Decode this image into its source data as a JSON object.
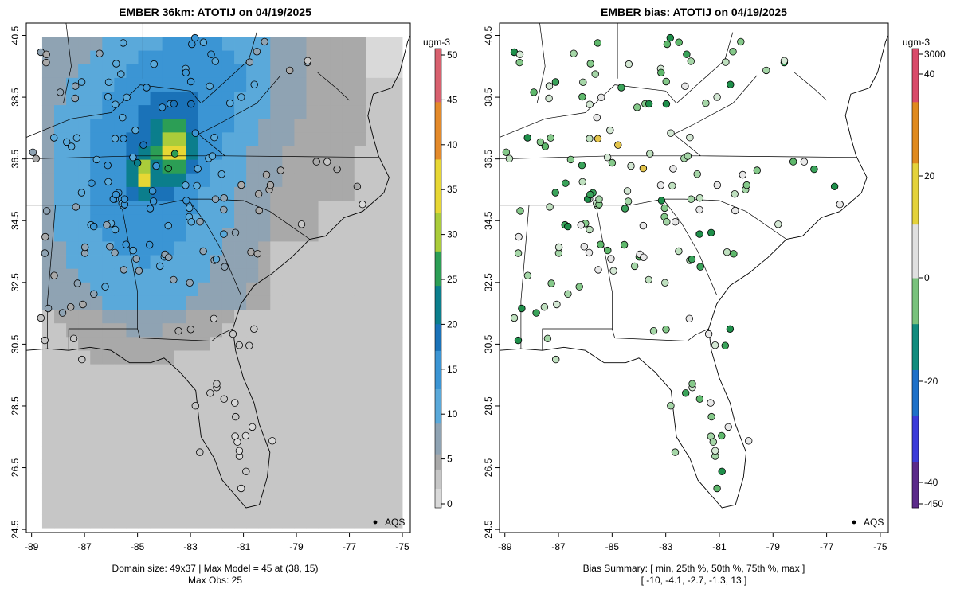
{
  "left_panel": {
    "title": "EMBER 36km: ATOTIJ on 04/19/2025",
    "colorbar_unit": "ugm-3",
    "colorbar_ticks": [
      "0",
      "5",
      "10",
      "15",
      "20",
      "25",
      "30",
      "35",
      "40",
      "45",
      "50"
    ],
    "legend_label": "AQS",
    "caption_line1": "Domain size: 49x37 | Max Model = 45 at (38, 15)",
    "caption_line2": "Max Obs: 25"
  },
  "right_panel": {
    "title": "EMBER bias: ATOTIJ on 04/19/2025",
    "colorbar_unit": "ugm-3",
    "colorbar_ticks": [
      "3000",
      "40",
      "20",
      "0",
      "-20",
      "-40",
      "-450"
    ],
    "legend_label": "AQS",
    "caption_line1": "Bias Summary: [ min, 25th %, 50th %, 75th %, max ]",
    "caption_line2": "[ -10,   -4.1,   -2.7,   -1.3,   13 ]"
  },
  "chart_data": [
    {
      "type": "heatmap",
      "title": "EMBER 36km: ATOTIJ on 04/19/2025",
      "units": "ugm-3",
      "x_ticks": [
        -89,
        -87,
        -85,
        -83,
        -81,
        -79,
        -77,
        -75
      ],
      "y_ticks": [
        40.5,
        38.5,
        36.5,
        34.5,
        32.5,
        30.5,
        28.5,
        26.5,
        24.5
      ],
      "xlim": [
        -89.2,
        -74.7
      ],
      "ylim": [
        24.4,
        40.9
      ],
      "color_range": [
        0,
        50
      ],
      "domain_size": "49x37",
      "max_model": 45,
      "max_obs": 25,
      "legend": "AQS"
    },
    {
      "type": "scatter",
      "title": "EMBER bias: ATOTIJ on 04/19/2025",
      "units": "ugm-3",
      "x_ticks": [
        -89,
        -87,
        -85,
        -83,
        -81,
        -79,
        -77,
        -75
      ],
      "y_ticks": [
        40.5,
        38.5,
        36.5,
        34.5,
        32.5,
        30.5,
        28.5,
        26.5,
        24.5
      ],
      "xlim": [
        -89.2,
        -74.7
      ],
      "ylim": [
        24.4,
        40.9
      ],
      "bias_summary": {
        "min": -10,
        "p25": -4.1,
        "p50": -2.7,
        "p75": -1.3,
        "max": 13
      },
      "legend": "AQS"
    }
  ]
}
